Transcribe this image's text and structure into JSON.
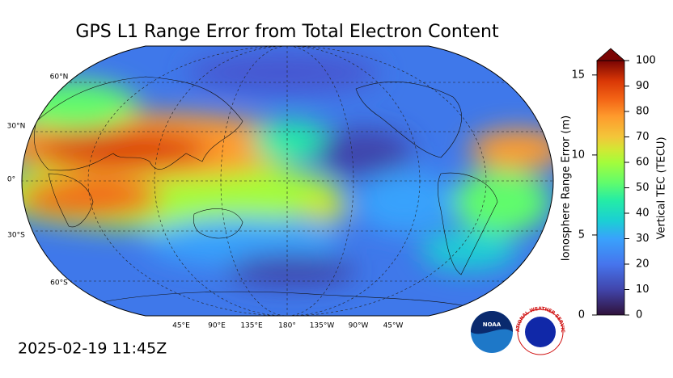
{
  "title": "GPS L1 Range Error from Total Electron Content",
  "timestamp": "2025-02-19 11:45Z",
  "map": {
    "lat_labels": [
      "60°N",
      "30°N",
      "0°",
      "30°S",
      "60°S"
    ],
    "lon_labels": [
      "45°E",
      "90°E",
      "135°E",
      "180°",
      "135°W",
      "90°W",
      "45°W"
    ]
  },
  "colorbar": {
    "left_label": "Ionosphere Range Error (m)",
    "left_lim": [
      0,
      15.9
    ],
    "left_ticks": [
      0,
      5,
      10,
      15
    ],
    "right_label": "Vertical TEC (TECU)",
    "right_lim": [
      0,
      100
    ],
    "right_ticks": [
      0,
      10,
      20,
      30,
      40,
      50,
      60,
      70,
      80,
      90,
      100
    ]
  },
  "logos": {
    "noaa": "NOAA",
    "nws": "NATIONAL WEATHER SERVICE"
  }
}
